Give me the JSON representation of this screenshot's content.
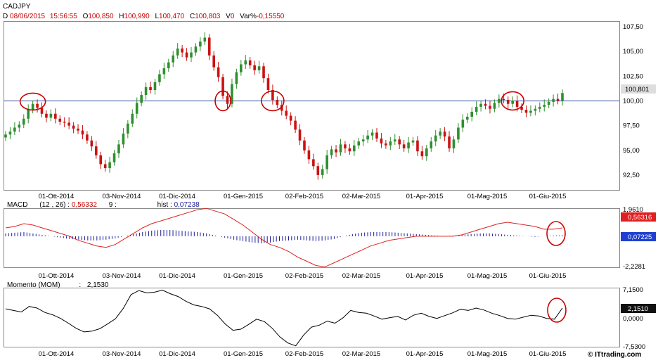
{
  "symbol": "CADJPY",
  "header": {
    "d_label": "D",
    "date": "08/06/2015",
    "time": "15:56:55",
    "o_label": "O",
    "open": "100,850",
    "h_label": "H",
    "high": "100,990",
    "l_label": "L",
    "low": "100,470",
    "c_label": "C",
    "close": "100,803",
    "v_label": "V",
    "volume": "0",
    "var_label": "Var%",
    "var": "-0,15550"
  },
  "x_ticks": [
    "01-Ott-2014",
    "03-Nov-2014",
    "01-Dic-2014",
    "01-Gen-2015",
    "02-Feb-2015",
    "02-Mar-2015",
    "01-Apr-2015",
    "01-Mag-2015",
    "01-Giu-2015"
  ],
  "price_axis": [
    "107,50",
    "105,00",
    "102,50",
    "100,00",
    "97,50",
    "95,00",
    "92,50"
  ],
  "price_badge": "100,801",
  "macd": {
    "label": "MACD",
    "params": "(12 , 26)",
    "value": "0,56332",
    "signal_param": "9",
    "sep": ":",
    "hist_label": "hist :",
    "hist_value": "0,07238",
    "axis_top": "1,9610",
    "axis_bottom": "-2,2281",
    "badge_macd": "0,56316",
    "badge_hist": "0,07225"
  },
  "momentum": {
    "label": "Momento (MOM)",
    "sep": ":",
    "value": "2,1530",
    "axis_top": "7,1500",
    "axis_mid": "0,0000",
    "axis_bottom": "-7,5300",
    "badge": "2,1510"
  },
  "watermark": "© ITtrading.com",
  "colors": {
    "up": "#2f8f2f",
    "down": "#cc1111",
    "macd_line": "#dd2222",
    "hist": "#1a1a9a",
    "circle": "#cc0000",
    "ref_line": "#2a4a9a"
  },
  "chart_data": [
    {
      "type": "candlestick",
      "title": "CADJPY",
      "ylim": [
        91,
        108
      ],
      "reference_line": 100.0,
      "last": 100.801,
      "x_start": "2014-09-08",
      "x_end": "2015-06-08",
      "closes": [
        96.6,
        96.9,
        97.3,
        97.6,
        98.2,
        99.1,
        99.7,
        99.3,
        98.7,
        98.3,
        98.7,
        98.2,
        97.9,
        97.8,
        97.5,
        97.2,
        97.0,
        96.6,
        96.0,
        95.4,
        94.5,
        93.6,
        93.2,
        93.8,
        94.7,
        95.6,
        96.7,
        97.7,
        98.7,
        99.8,
        100.6,
        101.4,
        101.1,
        101.9,
        102.7,
        103.3,
        103.9,
        104.6,
        105.3,
        104.9,
        104.4,
        104.9,
        105.5,
        106.0,
        106.4,
        104.6,
        103.4,
        102.4,
        100.5,
        99.7,
        101.7,
        102.9,
        103.7,
        104.1,
        103.6,
        103.1,
        103.5,
        102.3,
        101.1,
        100.1,
        99.6,
        99.0,
        98.5,
        98.0,
        97.1,
        96.0,
        95.0,
        94.1,
        93.4,
        92.5,
        93.1,
        94.5,
        95.1,
        94.8,
        95.6,
        95.2,
        94.9,
        95.5,
        95.9,
        96.1,
        96.5,
        96.8,
        96.2,
        95.7,
        95.5,
        95.9,
        96.1,
        95.6,
        95.2,
        95.8,
        96.0,
        94.9,
        94.4,
        95.2,
        95.9,
        96.5,
        96.9,
        96.4,
        95.2,
        96.1,
        97.3,
        98.1,
        98.4,
        98.9,
        99.4,
        99.7,
        99.5,
        99.2,
        99.8,
        100.2,
        100.1,
        99.7,
        100.0,
        99.4,
        99.1,
        98.8,
        99.0,
        99.2,
        99.4,
        99.6,
        99.9,
        100.2,
        100.0,
        100.8
      ]
    },
    {
      "type": "line",
      "title": "MACD",
      "ylim": [
        -2.2281,
        1.961
      ],
      "macd": [
        0.6,
        0.7,
        0.9,
        0.8,
        0.6,
        0.4,
        0.2,
        0.0,
        -0.3,
        -0.5,
        -0.7,
        -0.8,
        -0.6,
        -0.2,
        0.2,
        0.6,
        0.9,
        1.1,
        1.3,
        1.5,
        1.7,
        1.9,
        2.0,
        1.8,
        1.6,
        1.2,
        0.8,
        0.3,
        -0.2,
        -0.6,
        -0.8,
        -1.1,
        -1.5,
        -1.8,
        -2.1,
        -2.2,
        -1.9,
        -1.6,
        -1.3,
        -1.0,
        -0.7,
        -0.5,
        -0.3,
        -0.2,
        -0.1,
        0.0,
        0.0,
        0.0,
        0.0,
        0.0,
        0.1,
        0.3,
        0.5,
        0.7,
        0.9,
        1.0,
        0.9,
        0.8,
        0.7,
        0.5,
        0.5,
        0.6
      ],
      "histogram": [
        0.2,
        0.25,
        0.3,
        0.2,
        0.1,
        0.0,
        -0.1,
        -0.2,
        -0.25,
        -0.3,
        -0.3,
        -0.25,
        -0.15,
        0.0,
        0.15,
        0.3,
        0.4,
        0.45,
        0.45,
        0.4,
        0.35,
        0.3,
        0.2,
        0.05,
        -0.1,
        -0.25,
        -0.35,
        -0.45,
        -0.5,
        -0.45,
        -0.35,
        -0.3,
        -0.25,
        -0.3,
        -0.35,
        -0.3,
        -0.2,
        0.0,
        0.15,
        0.25,
        0.3,
        0.3,
        0.3,
        0.25,
        0.2,
        0.15,
        0.1,
        0.05,
        0.0,
        0.05,
        0.1,
        0.15,
        0.2,
        0.2,
        0.15,
        0.1,
        0.05,
        0.0,
        -0.05,
        0.0,
        0.05,
        0.07
      ]
    },
    {
      "type": "line",
      "title": "Momento (MOM)",
      "ylim": [
        -7.53,
        7.15
      ],
      "values": [
        2.0,
        1.6,
        1.2,
        2.6,
        2.2,
        1.1,
        0.5,
        -0.4,
        -1.6,
        -2.9,
        -3.8,
        -3.6,
        -3.0,
        -1.8,
        -0.5,
        2.1,
        5.6,
        6.6,
        6.0,
        6.2,
        6.7,
        5.8,
        5.1,
        3.9,
        3.0,
        2.6,
        2.0,
        0.4,
        -1.8,
        -3.4,
        -3.1,
        -1.9,
        -0.6,
        -1.2,
        -2.9,
        -5.1,
        -6.6,
        -7.3,
        -4.6,
        -2.6,
        -2.1,
        -1.1,
        -1.6,
        -0.3,
        1.6,
        1.1,
        0.9,
        0.2,
        -0.6,
        -0.2,
        0.1,
        -0.8,
        0.4,
        0.9,
        0.1,
        -0.4,
        0.3,
        1.0,
        1.9,
        1.6,
        2.2,
        1.7,
        0.9,
        0.3,
        -0.4,
        -0.6,
        -0.1,
        0.4,
        0.2,
        -0.4,
        -0.6,
        2.2
      ]
    }
  ]
}
